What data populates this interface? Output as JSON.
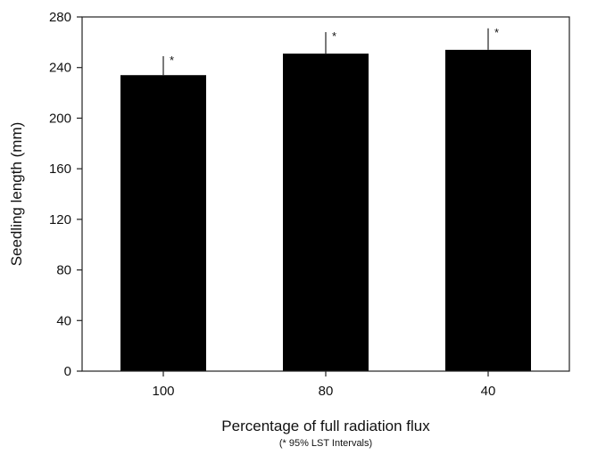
{
  "chart_data": {
    "type": "bar",
    "categories": [
      "100",
      "80",
      "40"
    ],
    "values": [
      234,
      251,
      254
    ],
    "error_upper": [
      249,
      268,
      271
    ],
    "error_markers": [
      "*",
      "*",
      "*"
    ],
    "xlabel": "Percentage of full radiation flux",
    "xlabel_note": "(* 95% LST Intervals)",
    "ylabel": "Seedling length (mm)",
    "ylim": [
      0,
      280
    ],
    "yticks": [
      0,
      40,
      80,
      120,
      160,
      200,
      240,
      280
    ],
    "bar_color": "#000000",
    "grid": false
  }
}
